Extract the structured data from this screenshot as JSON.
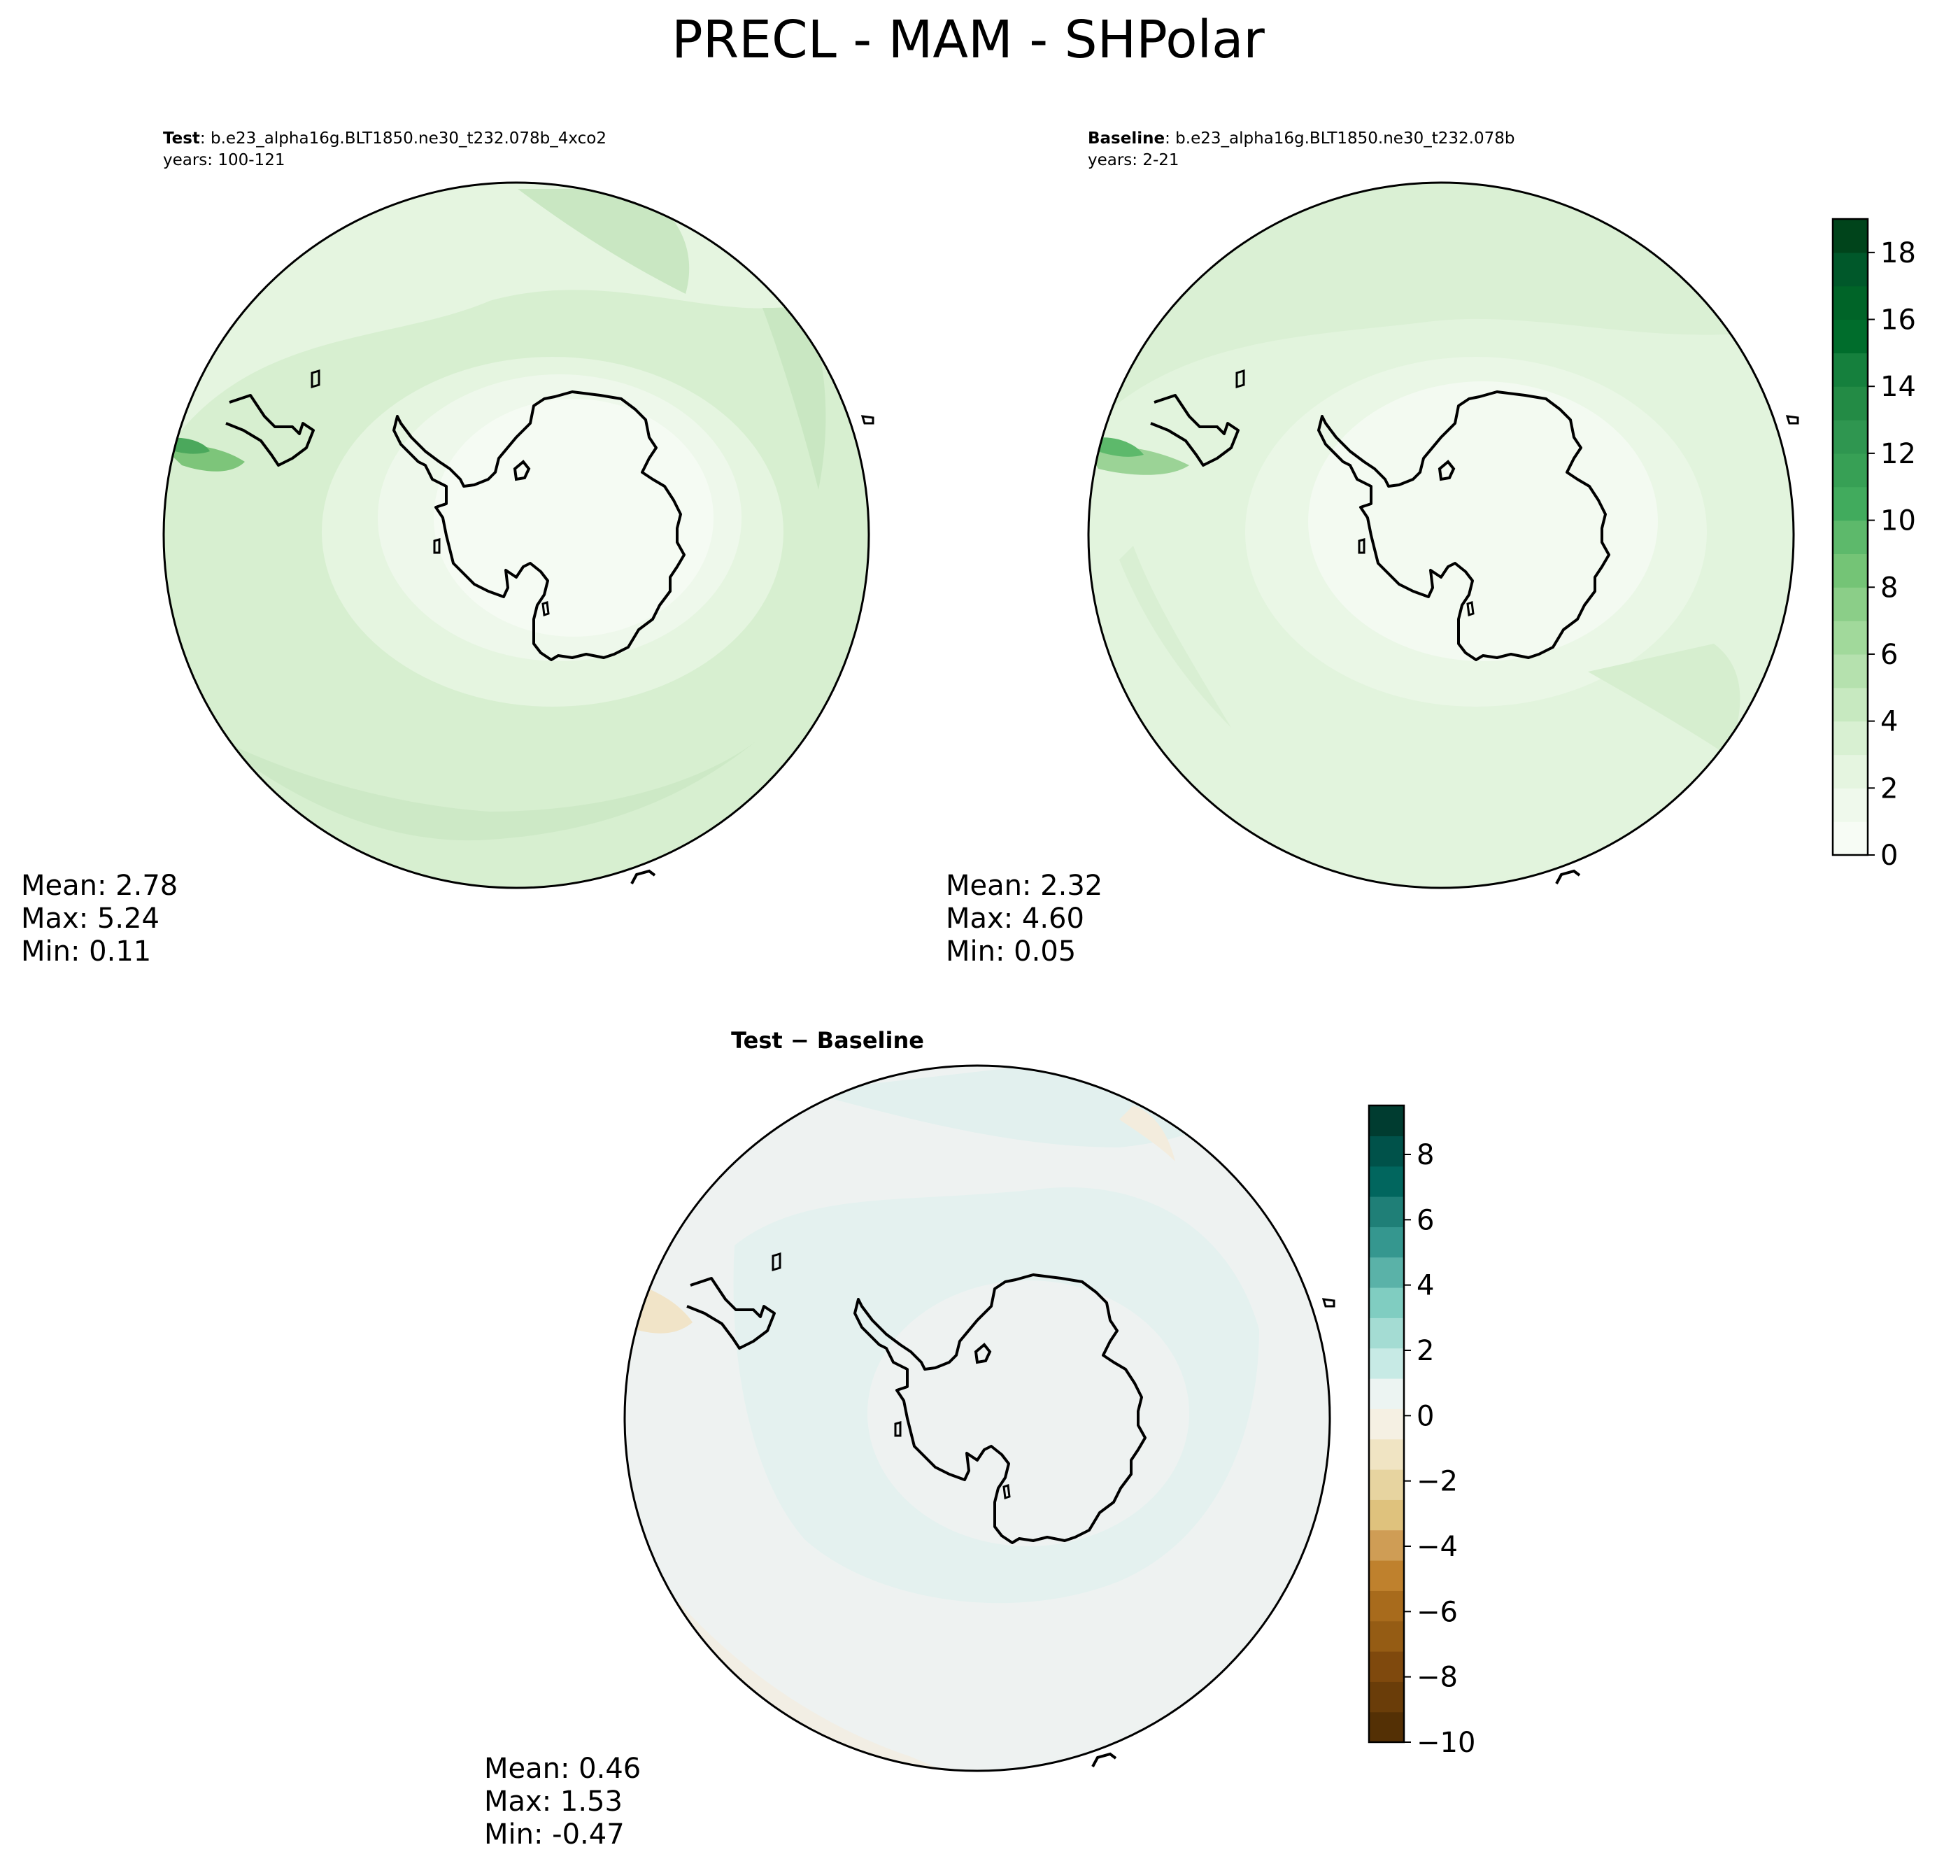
{
  "figure": {
    "title": "PRECL - MAM - SHPolar"
  },
  "panels": [
    {
      "id": "test",
      "title_bold": "Test",
      "title_rest": ": b.e23_alpha16g.BLT1850.ne30_t232.078b_4xco2",
      "years": "years: 100-121",
      "stats": {
        "mean": "Mean:  2.78",
        "max": "Max:  5.24",
        "min": "Min:  0.11"
      }
    },
    {
      "id": "baseline",
      "title_bold": "Baseline",
      "title_rest": ": b.e23_alpha16g.BLT1850.ne30_t232.078b",
      "years": "years: 2-21",
      "stats": {
        "mean": "Mean:  2.32",
        "max": "Max:  4.60",
        "min": "Min:  0.05"
      }
    },
    {
      "id": "difference",
      "title": "Test − Baseline",
      "stats": {
        "mean": "Mean:  0.46",
        "max": "Max:  1.53",
        "min": "Min: -0.47"
      }
    }
  ],
  "colorbars": [
    {
      "id": "precip",
      "colormap": "Greens",
      "range": [
        0,
        19
      ],
      "ticks": [
        0,
        2,
        4,
        6,
        8,
        10,
        12,
        14,
        16,
        18
      ],
      "tick_labels": [
        "0",
        "2",
        "4",
        "6",
        "8",
        "10",
        "12",
        "14",
        "16",
        "18"
      ],
      "colors": [
        "#f7fcf5",
        "#eff9ec",
        "#e5f5e0",
        "#d8f0d2",
        "#c7e9c0",
        "#b5e1ae",
        "#a1d99b",
        "#8bce88",
        "#74c476",
        "#5db96b",
        "#41ab5d",
        "#37a055",
        "#2f9650",
        "#238b45",
        "#15803d",
        "#006d2c",
        "#006428",
        "#00582a",
        "#00441b"
      ]
    },
    {
      "id": "diff",
      "colormap": "BrBG",
      "range": [
        -10,
        9.5
      ],
      "ticks": [
        -10,
        -8,
        -6,
        -4,
        -2,
        0,
        2,
        4,
        6,
        8
      ],
      "tick_labels": [
        "−10",
        "−8",
        "−6",
        "−4",
        "−2",
        "0",
        "2",
        "4",
        "6",
        "8"
      ],
      "colors": [
        "#543005",
        "#6a3d09",
        "#7f490d",
        "#955c14",
        "#a86b1c",
        "#bf812d",
        "#cf9d55",
        "#dfc27d",
        "#e7d4a0",
        "#f0e4c3",
        "#f5f0e3",
        "#ecf4f2",
        "#c7eae5",
        "#a4dcd3",
        "#80cdc1",
        "#5ab2a8",
        "#35978f",
        "#1f7f77",
        "#01665e",
        "#00524a",
        "#003c30"
      ]
    }
  ],
  "chart_data": {
    "type": "heatmap",
    "title": "PRECL - MAM - SHPolar",
    "projection": "south polar stereographic",
    "panels": [
      {
        "name": "Test",
        "mean": 2.78,
        "max": 5.24,
        "min": 0.11,
        "colorbar_range": [
          0,
          19
        ]
      },
      {
        "name": "Baseline",
        "mean": 2.32,
        "max": 4.6,
        "min": 0.05,
        "colorbar_range": [
          0,
          19
        ]
      },
      {
        "name": "Test − Baseline",
        "mean": 0.46,
        "max": 1.53,
        "min": -0.47,
        "colorbar_range": [
          -10,
          9.5
        ]
      }
    ]
  }
}
